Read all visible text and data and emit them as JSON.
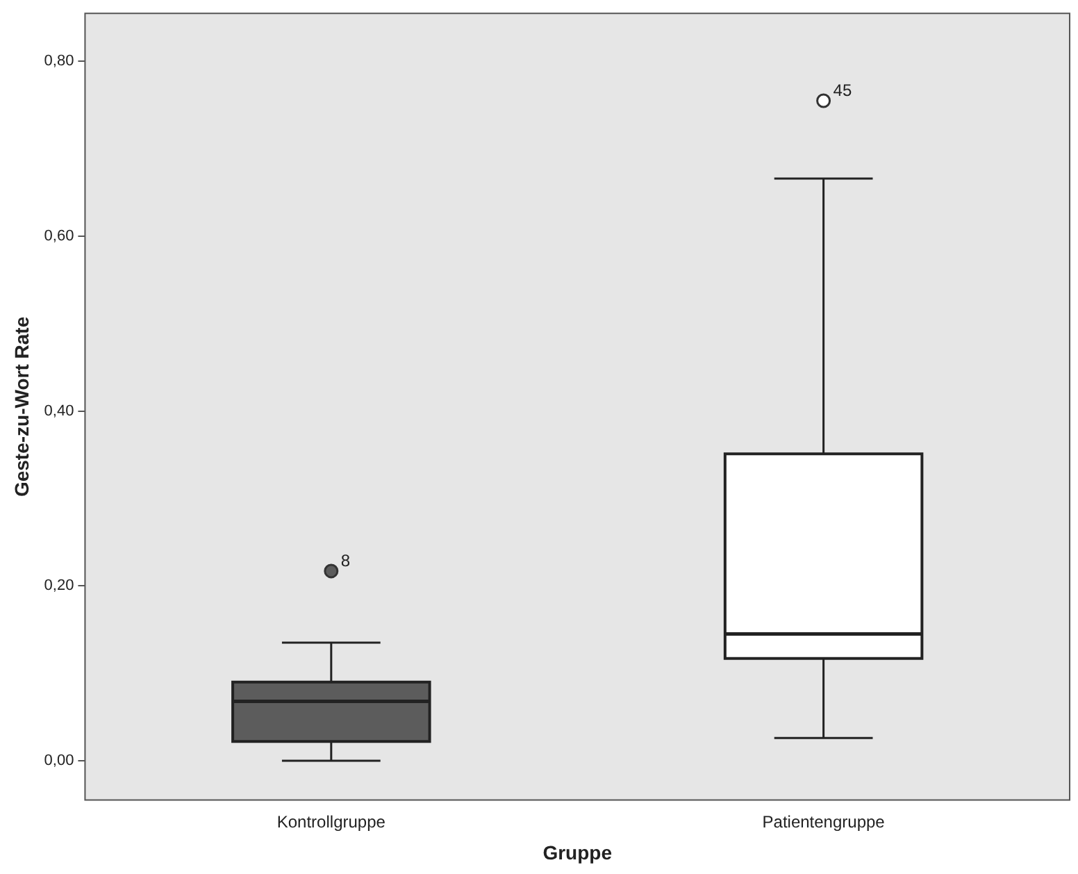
{
  "chart_data": {
    "type": "box",
    "xlabel": "Gruppe",
    "ylabel": "Geste-zu-Wort Rate",
    "categories": [
      "Kontrollgruppe",
      "Patientengruppe"
    ],
    "colors": [
      "#5c5c5c",
      "#ffffff"
    ],
    "boxes": [
      {
        "low": 0.0,
        "q1": 0.022,
        "median": 0.068,
        "q3": 0.09,
        "high": 0.135,
        "outliers": [
          0.217
        ]
      },
      {
        "low": 0.026,
        "q1": 0.117,
        "median": 0.145,
        "q3": 0.351,
        "high": 0.666,
        "outliers": [
          0.755
        ]
      }
    ],
    "annotations": [
      "8",
      "45"
    ],
    "ylim": [
      -0.045,
      0.855
    ],
    "yticks": [
      {
        "value": 0,
        "label": "0,00"
      },
      {
        "value": 0.2,
        "label": "0,20"
      },
      {
        "value": 0.4,
        "label": "0,40"
      },
      {
        "value": 0.6,
        "label": "0,60"
      },
      {
        "value": 0.8,
        "label": "0,80"
      }
    ],
    "grid": false,
    "legend": false
  }
}
